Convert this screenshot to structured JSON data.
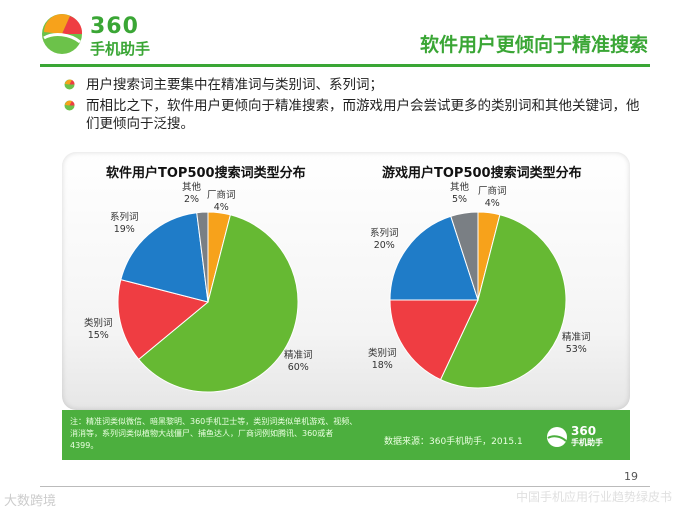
{
  "brand": {
    "logo_number": "360",
    "logo_name": "手机助手"
  },
  "page_title": "软件用户更倾向于精准搜索",
  "bullets": [
    "用户搜索词主要集中在精准词与类别词、系列词；",
    "而相比之下，软件用户更倾向于精准搜索，而游戏用户会尝试更多的类别词和其他关键词，他们更倾向于泛搜。"
  ],
  "colors": {
    "accent": "#3aa635",
    "slice": {
      "精准词": "#66b933",
      "类别词": "#ef3d42",
      "系列词": "#1f7cc8",
      "其他": "#7a7f84",
      "厂商词": "#f7a21b"
    }
  },
  "chart_data": [
    {
      "type": "pie",
      "title": "软件用户TOP500搜索词类型分布",
      "slices": [
        {
          "label": "厂商词",
          "value": 4,
          "display": "4%"
        },
        {
          "label": "精准词",
          "value": 60,
          "display": "60%"
        },
        {
          "label": "类别词",
          "value": 15,
          "display": "15%"
        },
        {
          "label": "系列词",
          "value": 19,
          "display": "19%"
        },
        {
          "label": "其他",
          "value": 2,
          "display": "2%"
        }
      ]
    },
    {
      "type": "pie",
      "title": "游戏用户TOP500搜索词类型分布",
      "slices": [
        {
          "label": "厂商词",
          "value": 4,
          "display": "4%"
        },
        {
          "label": "精准词",
          "value": 53,
          "display": "53%"
        },
        {
          "label": "类别词",
          "value": 18,
          "display": "18%"
        },
        {
          "label": "系列词",
          "value": 20,
          "display": "20%"
        },
        {
          "label": "其他",
          "value": 5,
          "display": "5%"
        }
      ]
    }
  ],
  "note": "注：精准词类似微信、暗黑黎明、360手机卫士等，类别词类似单机游戏、视频、消消等，系列词类似植物大战僵尸、捕鱼达人，厂商词例如腾讯、360或者4399。",
  "source": "数据来源：360手机助手，2015.1",
  "page_number": "19",
  "footer": "中国手机应用行业趋势绿皮书",
  "watermark": "大数跨境"
}
